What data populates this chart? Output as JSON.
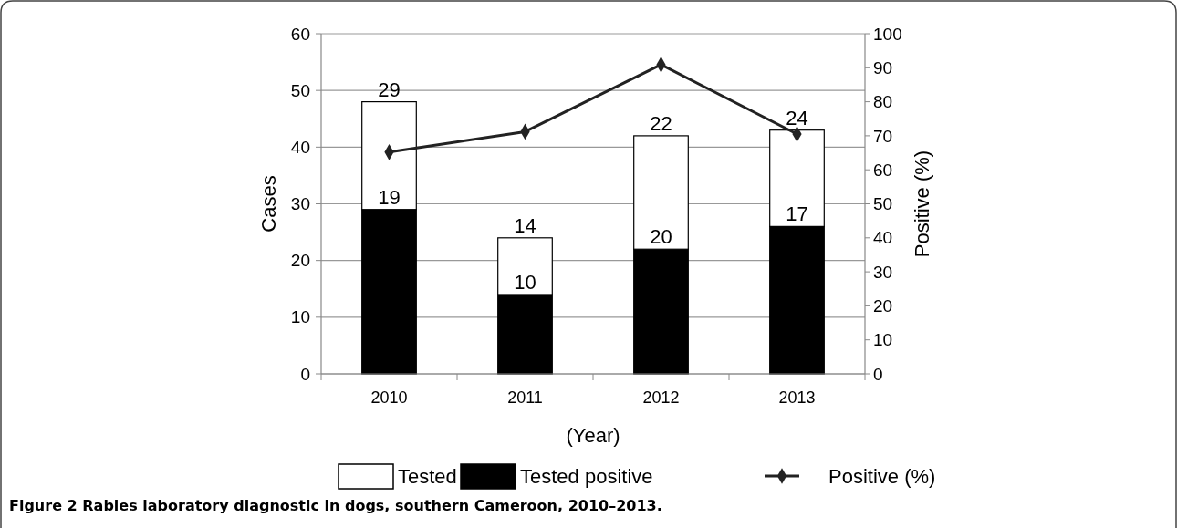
{
  "chart_data": {
    "type": "bar",
    "stacked": true,
    "xlabel": "(Year)",
    "ylabel": "Cases",
    "y2label": "Positive (%)",
    "categories": [
      "2010",
      "2011",
      "2012",
      "2013"
    ],
    "series": [
      {
        "name": "Tested positive",
        "color": "#000000",
        "values": [
          29,
          14,
          22,
          26
        ]
      },
      {
        "name": "Tested",
        "color": "#ffffff",
        "values": [
          19,
          10,
          20,
          17
        ],
        "value_labels": [
          "19",
          "10",
          "20",
          "17"
        ]
      },
      {
        "name": "Positive (%)",
        "type": "line",
        "axis": "y2",
        "color": "#222222",
        "marker": "diamond",
        "values": [
          65.2,
          71.2,
          90.9,
          70.5
        ]
      }
    ],
    "ylim": [
      0,
      60
    ],
    "yticks": [
      0,
      10,
      20,
      30,
      40,
      50,
      60
    ],
    "y2lim": [
      0,
      100
    ],
    "y2ticks": [
      0,
      10,
      20,
      30,
      40,
      50,
      60,
      70,
      80,
      90,
      100
    ],
    "grid": "y",
    "legend": "bottom",
    "annotations": [
      {
        "text": "29",
        "x": "2010",
        "y": 48
      },
      {
        "text": "14",
        "x": "2011",
        "y": 24
      },
      {
        "text": "22",
        "x": "2012",
        "y": 42
      },
      {
        "text": "24",
        "x": "2013",
        "y": 43
      },
      "Figure 2 Rabies laboratory diagnostic in dogs, southern Cameroon, 2010–2013."
    ]
  }
}
